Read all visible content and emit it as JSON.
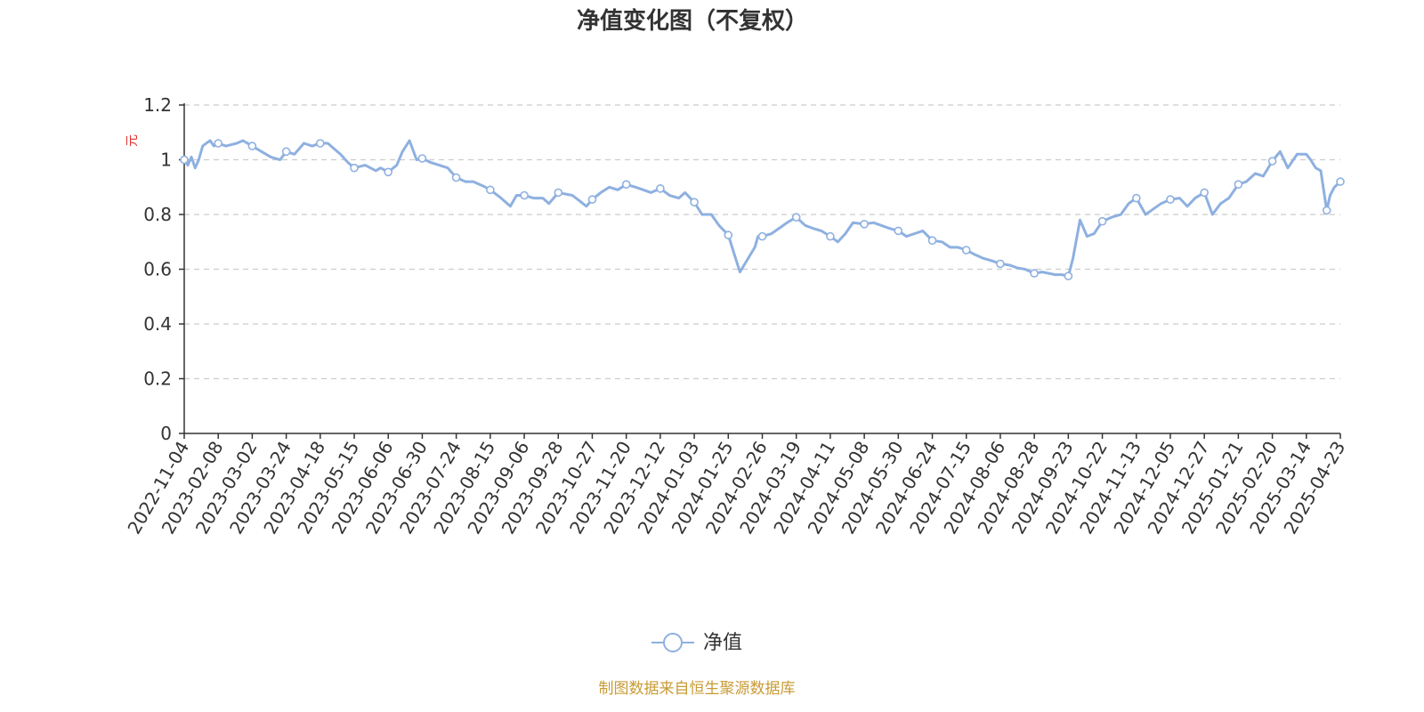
{
  "chart_data": {
    "type": "line",
    "title": "净值变化图（不复权）",
    "ylabel": "元",
    "ylim": [
      0,
      1.2
    ],
    "yticks": [
      0,
      0.2,
      0.4,
      0.6,
      0.8,
      1,
      1.2
    ],
    "ytick_labels": [
      "0",
      "0.2",
      "0.4",
      "0.6",
      "0.8",
      "1",
      "1.2"
    ],
    "grid": true,
    "legend": "bottom-center",
    "x_tick_labels": [
      "2022-11-04",
      "2023-02-08",
      "2023-03-02",
      "2023-03-24",
      "2023-04-18",
      "2023-05-15",
      "2023-06-06",
      "2023-06-30",
      "2023-07-24",
      "2023-08-15",
      "2023-09-06",
      "2023-09-28",
      "2023-10-27",
      "2023-11-20",
      "2023-12-12",
      "2024-01-03",
      "2024-01-25",
      "2024-02-26",
      "2024-03-19",
      "2024-04-11",
      "2024-05-08",
      "2024-05-30",
      "2024-06-24",
      "2024-07-15",
      "2024-08-06",
      "2024-08-28",
      "2024-09-23",
      "2024-10-22",
      "2024-11-13",
      "2024-12-05",
      "2024-12-27",
      "2025-01-21",
      "2025-02-20",
      "2025-03-14",
      "2025-04-23"
    ],
    "series": [
      {
        "name": "净值",
        "color": "#8eb0e0",
        "x": [
          "2022-11-04",
          "2022-11-14",
          "2022-11-24",
          "2022-12-05",
          "2022-12-15",
          "2022-12-26",
          "2023-01-05",
          "2023-01-16",
          "2023-01-27",
          "2023-02-08",
          "2023-02-13",
          "2023-02-20",
          "2023-02-24",
          "2023-03-02",
          "2023-03-08",
          "2023-03-14",
          "2023-03-20",
          "2023-03-24",
          "2023-03-30",
          "2023-04-06",
          "2023-04-12",
          "2023-04-18",
          "2023-04-24",
          "2023-05-04",
          "2023-05-10",
          "2023-05-15",
          "2023-05-22",
          "2023-05-29",
          "2023-06-01",
          "2023-06-06",
          "2023-06-12",
          "2023-06-16",
          "2023-06-21",
          "2023-06-26",
          "2023-06-30",
          "2023-07-06",
          "2023-07-12",
          "2023-07-18",
          "2023-07-24",
          "2023-07-30",
          "2023-08-04",
          "2023-08-10",
          "2023-08-15",
          "2023-08-22",
          "2023-08-28",
          "2023-09-01",
          "2023-09-06",
          "2023-09-12",
          "2023-09-18",
          "2023-09-22",
          "2023-09-28",
          "2023-10-10",
          "2023-10-16",
          "2023-10-22",
          "2023-10-27",
          "2023-11-02",
          "2023-11-08",
          "2023-11-14",
          "2023-11-20",
          "2023-11-26",
          "2023-12-01",
          "2023-12-06",
          "2023-12-12",
          "2023-12-18",
          "2023-12-24",
          "2023-12-28",
          "2024-01-03",
          "2024-01-08",
          "2024-01-14",
          "2024-01-19",
          "2024-01-25",
          "2024-01-31",
          "2024-02-05",
          "2024-02-19",
          "2024-02-22",
          "2024-02-26",
          "2024-03-03",
          "2024-03-08",
          "2024-03-13",
          "2024-03-19",
          "2024-03-25",
          "2024-03-30",
          "2024-04-05",
          "2024-04-11",
          "2024-04-17",
          "2024-04-23",
          "2024-04-29",
          "2024-05-08",
          "2024-05-14",
          "2024-05-19",
          "2024-05-24",
          "2024-05-30",
          "2024-06-05",
          "2024-06-11",
          "2024-06-17",
          "2024-06-24",
          "2024-06-30",
          "2024-07-05",
          "2024-07-10",
          "2024-07-15",
          "2024-07-20",
          "2024-07-26",
          "2024-08-01",
          "2024-08-06",
          "2024-08-12",
          "2024-08-17",
          "2024-08-22",
          "2024-08-28",
          "2024-09-03",
          "2024-09-08",
          "2024-09-13",
          "2024-09-18",
          "2024-09-23",
          "2024-09-27",
          "2024-10-03",
          "2024-10-09",
          "2024-10-15",
          "2024-10-22",
          "2024-10-28",
          "2024-11-03",
          "2024-11-08",
          "2024-11-13",
          "2024-11-19",
          "2024-11-24",
          "2024-11-29",
          "2024-12-05",
          "2024-12-11",
          "2024-12-16",
          "2024-12-21",
          "2024-12-27",
          "2025-01-02",
          "2025-01-08",
          "2025-01-14",
          "2025-01-21",
          "2025-01-28",
          "2025-02-05",
          "2025-02-12",
          "2025-02-20",
          "2025-02-25",
          "2025-03-02",
          "2025-03-08",
          "2025-03-14",
          "2025-03-19",
          "2025-03-25",
          "2025-03-31",
          "2025-04-07",
          "2025-04-11",
          "2025-04-16",
          "2025-04-23"
        ],
        "values": [
          1.0,
          0.98,
          1.01,
          0.97,
          1.0,
          1.05,
          1.06,
          1.07,
          1.05,
          1.06,
          1.05,
          1.06,
          1.07,
          1.05,
          1.03,
          1.01,
          1.0,
          1.03,
          1.02,
          1.06,
          1.05,
          1.06,
          1.06,
          1.02,
          0.99,
          0.97,
          0.98,
          0.96,
          0.97,
          0.955,
          0.98,
          1.03,
          1.07,
          1.0,
          1.005,
          0.99,
          0.98,
          0.97,
          0.935,
          0.92,
          0.92,
          0.905,
          0.89,
          0.86,
          0.83,
          0.87,
          0.87,
          0.86,
          0.86,
          0.84,
          0.88,
          0.87,
          0.85,
          0.83,
          0.855,
          0.88,
          0.9,
          0.89,
          0.91,
          0.9,
          0.89,
          0.88,
          0.895,
          0.87,
          0.86,
          0.88,
          0.845,
          0.8,
          0.8,
          0.76,
          0.725,
          0.65,
          0.59,
          0.68,
          0.72,
          0.72,
          0.73,
          0.75,
          0.77,
          0.79,
          0.76,
          0.75,
          0.74,
          0.72,
          0.7,
          0.73,
          0.77,
          0.765,
          0.77,
          0.76,
          0.75,
          0.74,
          0.72,
          0.73,
          0.74,
          0.705,
          0.7,
          0.68,
          0.68,
          0.67,
          0.655,
          0.64,
          0.63,
          0.62,
          0.615,
          0.605,
          0.6,
          0.585,
          0.59,
          0.585,
          0.58,
          0.58,
          0.575,
          0.64,
          0.78,
          0.72,
          0.73,
          0.775,
          0.79,
          0.8,
          0.84,
          0.86,
          0.8,
          0.82,
          0.84,
          0.855,
          0.86,
          0.83,
          0.86,
          0.88,
          0.8,
          0.84,
          0.86,
          0.91,
          0.92,
          0.95,
          0.94,
          0.995,
          1.03,
          0.97,
          1.02,
          1.02,
          1.0,
          0.97,
          0.96,
          0.815,
          0.87,
          0.9,
          0.92
        ],
        "marker_x": [
          "2022-11-04",
          "2023-02-08",
          "2023-03-02",
          "2023-03-24",
          "2023-04-18",
          "2023-05-15",
          "2023-06-06",
          "2023-06-30",
          "2023-07-24",
          "2023-08-15",
          "2023-09-06",
          "2023-09-28",
          "2023-10-27",
          "2023-11-20",
          "2023-12-12",
          "2024-01-03",
          "2024-01-25",
          "2024-02-26",
          "2024-03-19",
          "2024-04-11",
          "2024-05-08",
          "2024-05-30",
          "2024-06-24",
          "2024-07-15",
          "2024-08-06",
          "2024-08-28",
          "2024-09-23",
          "2024-10-22",
          "2024-11-13",
          "2024-12-05",
          "2024-12-27",
          "2025-01-21",
          "2025-02-20",
          "2025-04-07",
          "2025-04-23"
        ]
      }
    ]
  },
  "legend": {
    "label": "净值",
    "icon": "circle-line-marker"
  },
  "footer": {
    "source": "制图数据来自恒生聚源数据库",
    "source_color": "#c89b35"
  },
  "colors": {
    "line": "#8eb0e0",
    "axis": "#333333",
    "grid": "#cccccc",
    "unit": "#e03030",
    "title": "#333333"
  }
}
